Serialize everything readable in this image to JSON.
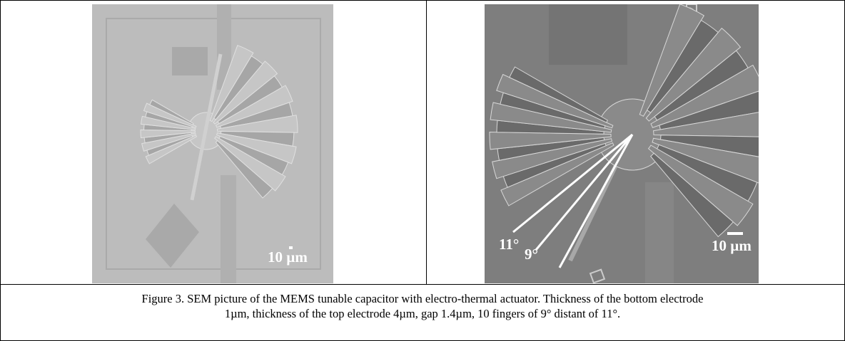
{
  "figure": {
    "left_image": {
      "scale_label": "10 µm"
    },
    "right_image": {
      "scale_label": "10 µm",
      "angle_labels": [
        "11°",
        "9°"
      ]
    },
    "caption": {
      "lines": [
        "Figure 3. SEM picture of the MEMS tunable capacitor with electro-thermal actuator. Thickness of the bottom electrode",
        "1µm, thickness of the top electrode 4µm, gap 1.4µm, 10 fingers of 9° distant of 11°."
      ]
    }
  }
}
